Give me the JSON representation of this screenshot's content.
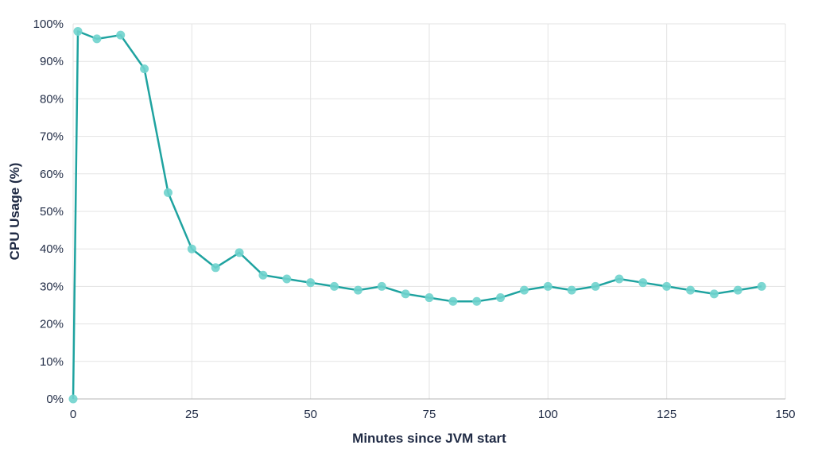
{
  "chart_data": {
    "type": "line",
    "title": "",
    "xlabel": "Minutes since JVM start",
    "ylabel": "CPU Usage (%)",
    "xlim": [
      0,
      150
    ],
    "ylim": [
      0,
      100
    ],
    "x_ticks": [
      0,
      25,
      50,
      75,
      100,
      125,
      150
    ],
    "x_tick_labels": [
      "0",
      "25",
      "50",
      "75",
      "100",
      "125",
      "150"
    ],
    "y_ticks": [
      0,
      10,
      20,
      30,
      40,
      50,
      60,
      70,
      80,
      90,
      100
    ],
    "y_tick_labels": [
      "0%",
      "10%",
      "20%",
      "30%",
      "40%",
      "50%",
      "60%",
      "70%",
      "80%",
      "90%",
      "100%"
    ],
    "grid": true,
    "legend": "none",
    "colors": {
      "line": "#1fa3a0",
      "marker": "#6fd3cd",
      "grid": "#e3e3e3"
    },
    "series": [
      {
        "x": [
          0,
          1,
          5,
          10,
          15,
          20,
          25,
          30,
          35,
          40,
          45,
          50,
          55,
          60,
          65,
          70,
          75,
          80,
          85,
          90,
          95,
          100,
          105,
          110,
          115,
          120,
          125,
          130,
          135,
          140,
          145
        ],
        "values": [
          0,
          98,
          96,
          97,
          88,
          55,
          40,
          35,
          39,
          33,
          32,
          31,
          30,
          29,
          30,
          28,
          27,
          26,
          26,
          27,
          29,
          30,
          29,
          30,
          32,
          31,
          30,
          29,
          28,
          29,
          30
        ]
      }
    ]
  }
}
